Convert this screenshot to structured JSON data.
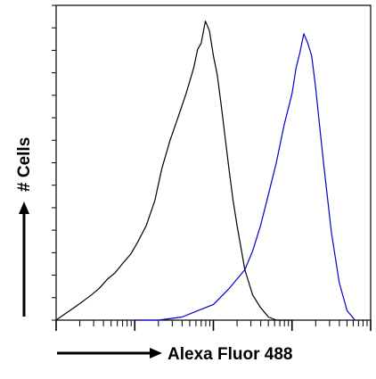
{
  "chart_data": {
    "type": "line",
    "title": "",
    "xlabel": "Alexa Fluor 488",
    "ylabel": "# Cells",
    "x_scale": "log",
    "xlim": [
      1,
      10000
    ],
    "ylim": [
      0,
      100
    ],
    "grid": false,
    "legend": "none",
    "series": [
      {
        "color": "#000000",
        "x": [
          1,
          1.3,
          1.7,
          2.2,
          2.8,
          3.5,
          4.5,
          5.6,
          7,
          8.9,
          11,
          14,
          18,
          22,
          28,
          35,
          45,
          56,
          63,
          70,
          79,
          89,
          100,
          112,
          126,
          141,
          158,
          178,
          200,
          251,
          316,
          398,
          501,
          631,
          794,
          1000
        ],
        "y": [
          0,
          2,
          4,
          6,
          8,
          10,
          13,
          15,
          18,
          21,
          25,
          30,
          38,
          48,
          57,
          64,
          72,
          80,
          86,
          88,
          95,
          92,
          84,
          78,
          68,
          58,
          48,
          38,
          30,
          16,
          8,
          4,
          1,
          0,
          0,
          0
        ]
      },
      {
        "color": "#0000cc",
        "x": [
          10,
          20,
          40,
          63,
          100,
          158,
          251,
          316,
          398,
          501,
          631,
          794,
          1000,
          1122,
          1259,
          1413,
          1585,
          1778,
          1995,
          2239,
          2512,
          3162,
          3981,
          5012,
          6310
        ],
        "y": [
          0,
          0,
          1,
          3,
          5,
          10,
          16,
          22,
          30,
          40,
          50,
          62,
          72,
          80,
          85,
          91,
          88,
          84,
          74,
          62,
          50,
          28,
          12,
          3,
          0
        ]
      }
    ]
  }
}
